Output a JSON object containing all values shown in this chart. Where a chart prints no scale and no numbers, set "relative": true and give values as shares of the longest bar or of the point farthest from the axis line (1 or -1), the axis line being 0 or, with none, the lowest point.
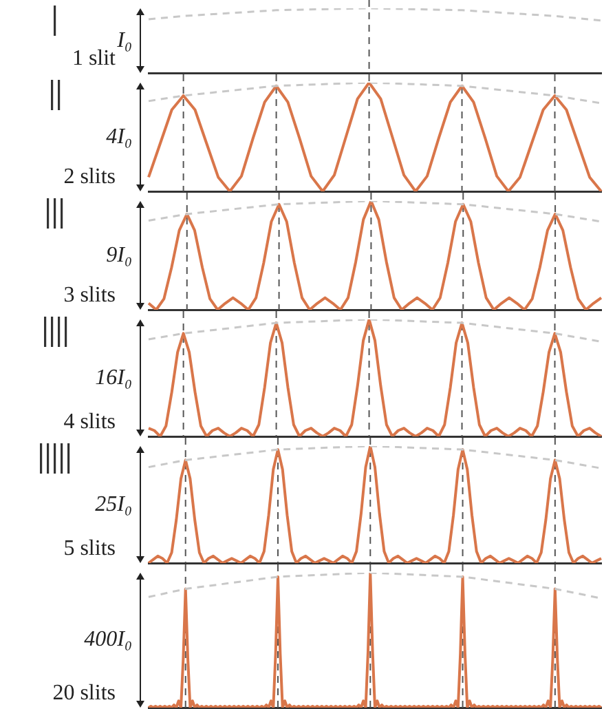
{
  "chart_data": [
    {
      "type": "line",
      "relative": true,
      "ylabel": "1 slit",
      "annotations": [
        "I₀"
      ],
      "tick_labels": false,
      "grid": "x",
      "categories": [
        null,
        null,
        null,
        null,
        null,
        null,
        null,
        null,
        null,
        null,
        null,
        null,
        null,
        null,
        null,
        null,
        null,
        null,
        null,
        null,
        null,
        null,
        null,
        null,
        null,
        null,
        null,
        null,
        null,
        null,
        null,
        null,
        null,
        null,
        null,
        null,
        null,
        null,
        null,
        null
      ],
      "series": [
        {
          "color": "#c8c8c8",
          "line_style": "dashed",
          "values": [
            0.83,
            null,
            null,
            0.88,
            null,
            null,
            null,
            null,
            null,
            null,
            null,
            0.97,
            null,
            null,
            null,
            null,
            null,
            null,
            null,
            1,
            null,
            null,
            null,
            null,
            null,
            null,
            null,
            0.97,
            null,
            null,
            null,
            null,
            null,
            null,
            null,
            0.88,
            null,
            null,
            null,
            0.81
          ]
        }
      ]
    },
    {
      "type": "line",
      "relative": true,
      "ylabel": "2 slits",
      "annotations": [
        "4I₀"
      ],
      "tick_labels": false,
      "grid": "x",
      "categories": [
        null,
        null,
        null,
        null,
        null,
        null,
        null,
        null,
        null,
        null,
        null,
        null,
        null,
        null,
        null,
        null,
        null,
        null,
        null,
        null,
        null,
        null,
        null,
        null,
        null,
        null,
        null,
        null,
        null,
        null,
        null,
        null,
        null,
        null,
        null,
        null,
        null,
        null,
        null,
        null
      ],
      "series": [
        {
          "color": "#c8c8c8",
          "line_style": "dashed",
          "values": [
            0.83,
            null,
            null,
            0.88,
            null,
            null,
            null,
            null,
            null,
            null,
            null,
            0.97,
            null,
            null,
            null,
            null,
            null,
            null,
            null,
            1,
            null,
            null,
            null,
            null,
            null,
            null,
            null,
            0.97,
            null,
            null,
            null,
            null,
            null,
            null,
            null,
            0.88,
            null,
            null,
            null,
            0.81
          ]
        },
        {
          "color": "#d9764a",
          "values": [
            0.13,
            0.44,
            0.75,
            0.88,
            0.75,
            0.44,
            0.13,
            0,
            0.14,
            0.49,
            0.82,
            0.97,
            0.82,
            0.49,
            0.14,
            0,
            0.15,
            0.5,
            0.85,
            1,
            0.85,
            0.5,
            0.15,
            0,
            0.14,
            0.49,
            0.82,
            0.97,
            0.82,
            0.49,
            0.14,
            0,
            0.13,
            0.44,
            0.75,
            0.88,
            0.75,
            0.44,
            0.13,
            0
          ]
        }
      ]
    },
    {
      "type": "line",
      "relative": true,
      "ylabel": "3 slits",
      "annotations": [
        "9I₀"
      ],
      "tick_labels": false,
      "grid": "x",
      "categories": [
        null,
        null,
        null,
        null,
        null,
        null,
        null,
        null,
        null,
        null,
        null,
        null,
        null,
        null,
        null,
        null,
        null,
        null,
        null,
        null,
        null,
        null,
        null,
        null,
        null,
        null,
        null,
        null,
        null,
        null,
        null,
        null,
        null,
        null,
        null,
        null,
        null,
        null,
        null,
        null,
        null,
        null,
        null,
        null,
        null,
        null,
        null,
        null,
        null,
        null,
        null,
        null,
        null,
        null,
        null,
        null,
        null,
        null,
        null,
        null
      ],
      "series": [
        {
          "color": "#c8c8c8",
          "line_style": "dashed",
          "values": [
            0.82,
            null,
            null,
            null,
            null,
            0.88,
            null,
            null,
            null,
            null,
            null,
            null,
            null,
            null,
            null,
            null,
            null,
            0.97,
            null,
            null,
            null,
            null,
            null,
            null,
            null,
            null,
            null,
            null,
            null,
            1,
            null,
            null,
            null,
            null,
            null,
            null,
            null,
            null,
            null,
            null,
            null,
            0.97,
            null,
            null,
            null,
            null,
            null,
            null,
            null,
            null,
            null,
            null,
            null,
            0.88,
            null,
            null,
            null,
            null,
            null,
            0.81
          ]
        },
        {
          "color": "#d9764a",
          "values": [
            0.06,
            0,
            0.1,
            0.39,
            0.73,
            0.88,
            0.73,
            0.39,
            0.1,
            0,
            0.06,
            0.11,
            0.06,
            0,
            0.11,
            0.43,
            0.81,
            0.97,
            0.81,
            0.43,
            0.11,
            0,
            0.06,
            0.11,
            0.06,
            0,
            0.11,
            0.44,
            0.83,
            1,
            0.83,
            0.44,
            0.11,
            0,
            0.06,
            0.11,
            0.06,
            0,
            0.11,
            0.43,
            0.81,
            0.97,
            0.81,
            0.43,
            0.11,
            0,
            0.06,
            0.11,
            0.06,
            0,
            0.1,
            0.39,
            0.73,
            0.88,
            0.73,
            0.39,
            0.1,
            0,
            0.06,
            0.11
          ]
        }
      ]
    },
    {
      "type": "line",
      "relative": true,
      "ylabel": "4 slits",
      "annotations": [
        "16I₀"
      ],
      "tick_labels": false,
      "grid": "x",
      "categories": [
        null,
        null,
        null,
        null,
        null,
        null,
        null,
        null,
        null,
        null,
        null,
        null,
        null,
        null,
        null,
        null,
        null,
        null,
        null,
        null,
        null,
        null,
        null,
        null,
        null,
        null,
        null,
        null,
        null,
        null,
        null,
        null,
        null,
        null,
        null,
        null,
        null,
        null,
        null,
        null,
        null,
        null,
        null,
        null,
        null,
        null,
        null,
        null,
        null,
        null,
        null,
        null,
        null,
        null,
        null,
        null,
        null,
        null,
        null,
        null,
        null,
        null,
        null,
        null,
        null,
        null,
        null,
        null,
        null,
        null,
        null,
        null,
        null,
        null,
        null,
        null,
        null,
        null,
        null
      ],
      "series": [
        {
          "color": "#c8c8c8",
          "line_style": "dashed",
          "values": [
            0.83,
            null,
            null,
            null,
            null,
            null,
            0.88,
            null,
            null,
            null,
            null,
            null,
            null,
            null,
            null,
            null,
            null,
            null,
            null,
            null,
            null,
            null,
            0.97,
            null,
            null,
            null,
            null,
            null,
            null,
            null,
            null,
            null,
            null,
            null,
            null,
            null,
            null,
            null,
            1,
            null,
            null,
            null,
            null,
            null,
            null,
            null,
            null,
            null,
            null,
            null,
            null,
            null,
            null,
            null,
            0.97,
            null,
            null,
            null,
            null,
            null,
            null,
            null,
            null,
            null,
            null,
            null,
            null,
            null,
            null,
            null,
            0.88,
            null,
            null,
            null,
            null,
            null,
            null,
            null,
            0.81
          ]
        },
        {
          "color": "#d9764a",
          "values": [
            0.07,
            0.05,
            0,
            0.09,
            0.38,
            0.72,
            0.88,
            0.72,
            0.38,
            0.09,
            0,
            0.05,
            0.07,
            0.03,
            0,
            0.03,
            0.07,
            0.05,
            0,
            0.1,
            0.42,
            0.8,
            0.97,
            0.8,
            0.42,
            0.1,
            0,
            0.05,
            0.07,
            0.03,
            0,
            0.03,
            0.07,
            0.05,
            0,
            0.1,
            0.43,
            0.82,
            1,
            0.82,
            0.43,
            0.1,
            0,
            0.05,
            0.07,
            0.03,
            0,
            0.03,
            0.07,
            0.05,
            0,
            0.1,
            0.42,
            0.8,
            0.97,
            0.8,
            0.42,
            0.1,
            0,
            0.05,
            0.07,
            0.03,
            0,
            0.03,
            0.07,
            0.05,
            0,
            0.09,
            0.38,
            0.72,
            0.88,
            0.72,
            0.38,
            0.09,
            0,
            0.05,
            0.07,
            0.03,
            0
          ]
        }
      ]
    },
    {
      "type": "line",
      "relative": true,
      "ylabel": "5 slits",
      "annotations": [
        "25I₀"
      ],
      "tick_labels": false,
      "grid": "x",
      "categories": [
        null,
        null,
        null,
        null,
        null,
        null,
        null,
        null,
        null,
        null,
        null,
        null,
        null,
        null,
        null,
        null,
        null,
        null,
        null,
        null,
        null,
        null,
        null,
        null,
        null,
        null,
        null,
        null,
        null,
        null,
        null,
        null,
        null,
        null,
        null,
        null,
        null,
        null,
        null,
        null,
        null,
        null,
        null,
        null,
        null,
        null,
        null,
        null,
        null,
        null,
        null,
        null,
        null,
        null,
        null,
        null,
        null,
        null,
        null,
        null,
        null,
        null,
        null,
        null,
        null,
        null,
        null,
        null,
        null,
        null,
        null,
        null,
        null,
        null,
        null,
        null,
        null,
        null,
        null,
        null,
        null,
        null,
        null,
        null,
        null,
        null,
        null,
        null,
        null,
        null,
        null,
        null,
        null,
        null,
        null,
        null,
        null,
        null,
        null
      ],
      "series": [
        {
          "color": "#c8c8c8",
          "line_style": "dashed",
          "values": [
            0.82,
            null,
            null,
            null,
            null,
            null,
            null,
            null,
            0.88,
            null,
            null,
            null,
            null,
            null,
            null,
            null,
            null,
            null,
            null,
            null,
            null,
            null,
            null,
            null,
            null,
            null,
            null,
            null,
            0.97,
            null,
            null,
            null,
            null,
            null,
            null,
            null,
            null,
            null,
            null,
            null,
            null,
            null,
            null,
            null,
            null,
            null,
            null,
            null,
            1,
            null,
            null,
            null,
            null,
            null,
            null,
            null,
            null,
            null,
            null,
            null,
            null,
            null,
            null,
            null,
            null,
            null,
            null,
            null,
            0.97,
            null,
            null,
            null,
            null,
            null,
            null,
            null,
            null,
            null,
            null,
            null,
            null,
            null,
            null,
            null,
            null,
            null,
            null,
            null,
            0.88,
            null,
            null,
            null,
            null,
            null,
            null,
            null,
            null,
            null,
            0.81
          ]
        },
        {
          "color": "#d9764a",
          "values": [
            0,
            0.03,
            0.06,
            0.04,
            0,
            0.09,
            0.37,
            0.72,
            0.88,
            0.72,
            0.37,
            0.09,
            0,
            0.04,
            0.06,
            0.03,
            0,
            0.02,
            0.04,
            0.02,
            0,
            0.03,
            0.06,
            0.04,
            0,
            0.1,
            0.41,
            0.8,
            0.97,
            0.8,
            0.41,
            0.1,
            0,
            0.04,
            0.06,
            0.03,
            0,
            0.02,
            0.04,
            0.02,
            0,
            0.03,
            0.06,
            0.04,
            0,
            0.1,
            0.42,
            0.82,
            1,
            0.82,
            0.42,
            0.1,
            0,
            0.04,
            0.06,
            0.03,
            0,
            0.02,
            0.04,
            0.02,
            0,
            0.03,
            0.06,
            0.04,
            0,
            0.1,
            0.41,
            0.8,
            0.97,
            0.8,
            0.41,
            0.1,
            0,
            0.04,
            0.06,
            0.03,
            0,
            0.02,
            0.04,
            0.02,
            0,
            0.03,
            0.06,
            0.04,
            0,
            0.09,
            0.37,
            0.72,
            0.88,
            0.72,
            0.37,
            0.09,
            0,
            0.04,
            0.06,
            0.03,
            0,
            0.02,
            0.04
          ]
        }
      ]
    },
    {
      "type": "line",
      "relative": true,
      "ylabel": "20 slits",
      "annotations": [
        "400I₀"
      ],
      "tick_labels": false,
      "grid": "x",
      "categories": [
        null,
        null,
        null,
        null,
        null,
        null,
        null,
        null,
        null,
        null,
        null,
        null,
        null,
        null,
        null,
        null,
        null,
        null,
        null,
        null,
        null,
        null,
        null,
        null,
        null,
        null,
        null,
        null,
        null,
        null,
        null,
        null,
        null,
        null,
        null,
        null,
        null,
        null,
        null,
        null,
        null,
        null,
        null,
        null,
        null,
        null,
        null,
        null,
        null,
        null,
        null,
        null,
        null,
        null,
        null,
        null,
        null,
        null,
        null,
        null,
        null,
        null,
        null,
        null,
        null,
        null,
        null,
        null,
        null,
        null,
        null,
        null,
        null,
        null,
        null,
        null,
        null,
        null,
        null,
        null,
        null,
        null,
        null,
        null,
        null,
        null,
        null,
        null,
        null,
        null,
        null,
        null,
        null,
        null,
        null,
        null,
        null,
        null,
        null,
        null,
        null,
        null,
        null,
        null,
        null,
        null,
        null,
        null,
        null,
        null,
        null,
        null,
        null,
        null,
        null,
        null,
        null,
        null,
        null,
        null,
        null,
        null,
        null,
        null,
        null,
        null,
        null,
        null,
        null,
        null,
        null,
        null,
        null,
        null,
        null,
        null,
        null,
        null,
        null,
        null,
        null,
        null,
        null,
        null,
        null,
        null,
        null,
        null,
        null,
        null,
        null,
        null,
        null,
        null,
        null,
        null,
        null,
        null,
        null,
        null,
        null,
        null,
        null,
        null,
        null,
        null,
        null,
        null,
        null,
        null,
        null,
        null,
        null,
        null,
        null,
        null,
        null,
        null,
        null,
        null,
        null,
        null,
        null,
        null,
        null,
        null,
        null,
        null,
        null,
        null,
        null,
        null,
        null,
        null,
        null,
        null,
        null
      ],
      "series": [
        {
          "color": "#c8c8c8",
          "line_style": "dashed",
          "values": [
            0.82,
            null,
            null,
            null,
            null,
            null,
            null,
            null,
            null,
            null,
            null,
            null,
            null,
            null,
            null,
            null,
            0.88,
            null,
            null,
            null,
            null,
            null,
            null,
            null,
            null,
            null,
            null,
            null,
            null,
            null,
            null,
            null,
            null,
            null,
            null,
            null,
            null,
            null,
            null,
            null,
            null,
            null,
            null,
            null,
            null,
            null,
            null,
            null,
            null,
            null,
            null,
            null,
            null,
            null,
            null,
            null,
            0.97,
            null,
            null,
            null,
            null,
            null,
            null,
            null,
            null,
            null,
            null,
            null,
            null,
            null,
            null,
            null,
            null,
            null,
            null,
            null,
            null,
            null,
            null,
            null,
            null,
            null,
            null,
            null,
            null,
            null,
            null,
            null,
            null,
            null,
            null,
            null,
            null,
            null,
            null,
            null,
            1,
            null,
            null,
            null,
            null,
            null,
            null,
            null,
            null,
            null,
            null,
            null,
            null,
            null,
            null,
            null,
            null,
            null,
            null,
            null,
            null,
            null,
            null,
            null,
            null,
            null,
            null,
            null,
            null,
            null,
            null,
            null,
            null,
            null,
            null,
            null,
            null,
            null,
            null,
            null,
            0.97,
            null,
            null,
            null,
            null,
            null,
            null,
            null,
            null,
            null,
            null,
            null,
            null,
            null,
            null,
            null,
            null,
            null,
            null,
            null,
            null,
            null,
            null,
            null,
            null,
            null,
            null,
            null,
            null,
            null,
            null,
            null,
            null,
            null,
            null,
            null,
            null,
            null,
            null,
            null,
            0.88,
            null,
            null,
            null,
            null,
            null,
            null,
            null,
            null,
            null,
            null,
            null,
            null,
            null,
            null,
            null,
            null,
            null,
            null,
            null,
            0.81
          ]
        },
        {
          "color": "#d9764a",
          "values": [
            0,
            0.01,
            0,
            0.01,
            0,
            0.01,
            0,
            0.01,
            0,
            0.01,
            0,
            0.02,
            0,
            0.05,
            0,
            0.36,
            0.88,
            0.36,
            0,
            0.05,
            0,
            0.02,
            0,
            0.01,
            0,
            0.01,
            0,
            0.01,
            0,
            0.01,
            0,
            0.01,
            0,
            0.01,
            0,
            0.01,
            0,
            0.01,
            0,
            0.01,
            0,
            0.01,
            0,
            0.01,
            0,
            0.01,
            0,
            0.01,
            0,
            0.01,
            0,
            0.02,
            0,
            0.05,
            0,
            0.4,
            0.97,
            0.4,
            0,
            0.05,
            0,
            0.02,
            0,
            0.01,
            0,
            0.01,
            0,
            0.01,
            0,
            0.01,
            0,
            0.01,
            0,
            0.01,
            0,
            0.01,
            0,
            0.01,
            0,
            0.01,
            0,
            0.01,
            0,
            0.01,
            0,
            0.01,
            0,
            0.01,
            0,
            0.01,
            0,
            0.02,
            0,
            0.05,
            0,
            0.41,
            1,
            0.41,
            0,
            0.05,
            0,
            0.02,
            0,
            0.01,
            0,
            0.01,
            0,
            0.01,
            0,
            0.01,
            0,
            0.01,
            0,
            0.01,
            0,
            0.01,
            0,
            0.01,
            0,
            0.01,
            0,
            0.01,
            0,
            0.01,
            0,
            0.01,
            0,
            0.01,
            0,
            0.01,
            0,
            0.02,
            0,
            0.05,
            0,
            0.4,
            0.97,
            0.4,
            0,
            0.05,
            0,
            0.02,
            0,
            0.01,
            0,
            0.01,
            0,
            0.01,
            0,
            0.01,
            0,
            0.01,
            0,
            0.01,
            0,
            0.01,
            0,
            0.01,
            0,
            0.01,
            0,
            0.01,
            0,
            0.01,
            0,
            0.01,
            0,
            0.01,
            0,
            0.01,
            0,
            0.02,
            0,
            0.05,
            0,
            0.36,
            0.88,
            0.36,
            0,
            0.05,
            0,
            0.02,
            0,
            0.01,
            0,
            0.01,
            0,
            0.01,
            0,
            0.01,
            0,
            0.01,
            0,
            0.01,
            0,
            0.01,
            0
          ]
        }
      ]
    }
  ]
}
